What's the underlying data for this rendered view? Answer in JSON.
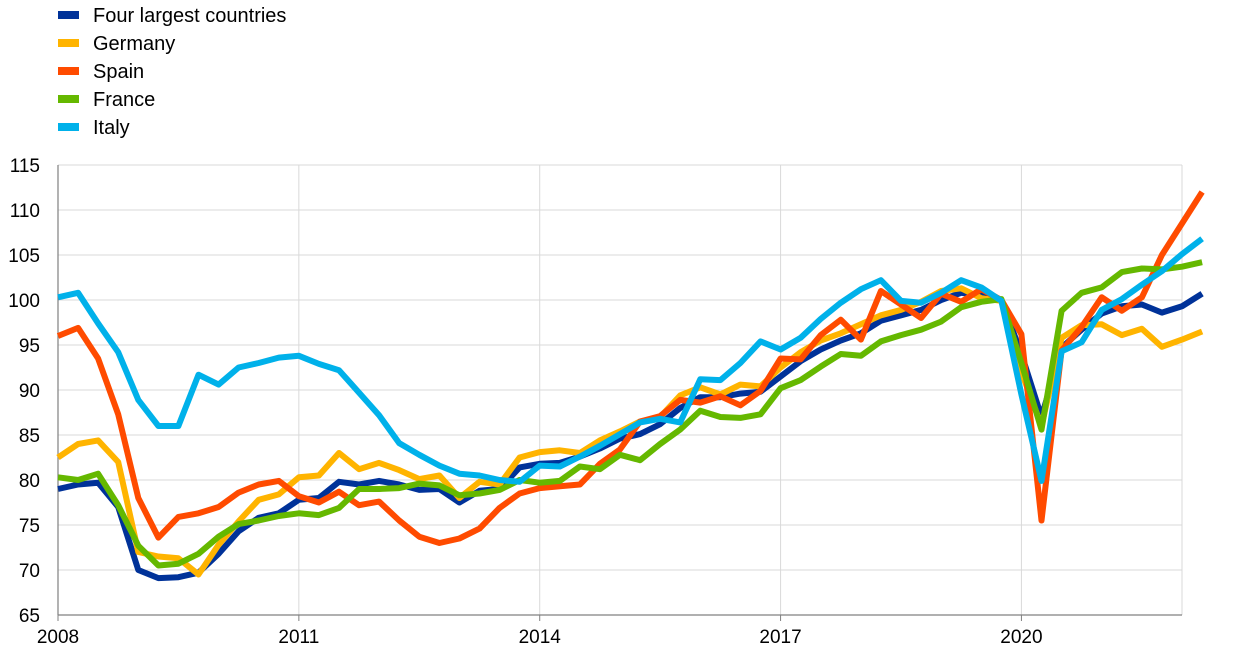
{
  "chart_data": {
    "type": "line",
    "title": "",
    "xlabel": "",
    "ylabel": "",
    "x_start": 2008.0,
    "x_step": 0.25,
    "xlim": [
      2008,
      2022
    ],
    "ylim": [
      65,
      115
    ],
    "x_ticks": [
      2008,
      2011,
      2014,
      2017,
      2020
    ],
    "x_tick_labels": [
      "2008",
      "2011",
      "2014",
      "2017",
      "2020"
    ],
    "y_ticks": [
      65,
      70,
      75,
      80,
      85,
      90,
      95,
      100,
      105,
      110,
      115
    ],
    "y_tick_labels": [
      "65",
      "70",
      "75",
      "80",
      "85",
      "90",
      "95",
      "100",
      "105",
      "110",
      "115"
    ],
    "grid": true,
    "legend_position": "top-left",
    "series": [
      {
        "name": "Four largest  countries",
        "color": "#003299",
        "values": [
          79.0,
          79.5,
          79.7,
          77.0,
          70.0,
          69.1,
          69.2,
          69.7,
          71.8,
          74.3,
          75.8,
          76.3,
          77.8,
          78.0,
          79.8,
          79.5,
          79.9,
          79.5,
          78.9,
          79.0,
          77.5,
          78.8,
          79.0,
          81.4,
          81.8,
          81.9,
          82.6,
          83.5,
          84.6,
          85.1,
          86.2,
          88.0,
          89.2,
          89.2,
          89.6,
          89.8,
          91.5,
          93.2,
          94.5,
          95.5,
          96.3,
          97.7,
          98.3,
          98.9,
          100.0,
          100.8,
          100.5,
          100.0,
          94.0,
          87.0,
          94.7,
          96.7,
          98.5,
          99.3,
          99.5,
          98.6,
          99.3,
          100.7
        ]
      },
      {
        "name": "Germany",
        "color": "#FFB400",
        "values": [
          82.5,
          84.0,
          84.4,
          82.0,
          72.0,
          71.5,
          71.3,
          69.5,
          72.8,
          75.4,
          77.8,
          78.4,
          80.3,
          80.5,
          83.0,
          81.2,
          81.9,
          81.1,
          80.1,
          80.5,
          78.0,
          79.8,
          79.5,
          82.5,
          83.1,
          83.3,
          83.0,
          84.4,
          85.4,
          86.5,
          87.0,
          89.4,
          90.3,
          89.5,
          90.6,
          90.4,
          92.5,
          94.2,
          95.5,
          96.3,
          97.3,
          98.3,
          98.9,
          99.8,
          101.0,
          101.3,
          100.2,
          99.9,
          92.0,
          86.0,
          95.8,
          97.2,
          97.3,
          96.1,
          96.8,
          94.8,
          95.6,
          96.5
        ]
      },
      {
        "name": "Spain",
        "color": "#FF4B00",
        "values": [
          96.0,
          96.9,
          93.5,
          87.3,
          78.0,
          73.6,
          75.9,
          76.3,
          77.0,
          78.6,
          79.5,
          79.9,
          78.2,
          77.5,
          78.7,
          77.2,
          77.6,
          75.5,
          73.7,
          73.0,
          73.5,
          74.6,
          76.9,
          78.5,
          79.1,
          79.3,
          79.5,
          81.8,
          83.4,
          86.5,
          87.1,
          88.9,
          88.6,
          89.3,
          88.3,
          89.9,
          93.5,
          93.4,
          96.1,
          97.8,
          95.6,
          101.0,
          99.5,
          98.0,
          100.7,
          99.8,
          101.2,
          100.0,
          96.2,
          75.5,
          94.4,
          97.0,
          100.3,
          98.8,
          100.3,
          105.0,
          108.5,
          112.0
        ]
      },
      {
        "name": "France",
        "color": "#65B800",
        "values": [
          80.3,
          80.0,
          80.7,
          77.2,
          72.7,
          70.5,
          70.7,
          71.8,
          73.7,
          75.1,
          75.5,
          76.0,
          76.3,
          76.1,
          76.9,
          79.0,
          79.0,
          79.1,
          79.6,
          79.4,
          78.3,
          78.5,
          78.9,
          80.0,
          79.7,
          79.9,
          81.5,
          81.2,
          82.8,
          82.2,
          84.0,
          85.6,
          87.7,
          87.0,
          86.9,
          87.3,
          90.2,
          91.1,
          92.6,
          94.0,
          93.8,
          95.4,
          96.1,
          96.7,
          97.6,
          99.2,
          99.8,
          100.1,
          93.0,
          85.6,
          98.8,
          100.8,
          101.4,
          103.1,
          103.5,
          103.4,
          103.7,
          104.2
        ]
      },
      {
        "name": "Italy",
        "color": "#00B1EA",
        "values": [
          100.3,
          100.8,
          97.4,
          94.2,
          88.9,
          86.0,
          86.0,
          91.7,
          90.6,
          92.5,
          93.0,
          93.6,
          93.8,
          92.9,
          92.2,
          89.7,
          87.2,
          84.1,
          82.8,
          81.6,
          80.7,
          80.5,
          80.0,
          79.8,
          81.6,
          81.5,
          82.6,
          83.8,
          85.1,
          86.4,
          86.8,
          86.4,
          91.2,
          91.1,
          93.0,
          95.4,
          94.5,
          95.8,
          97.9,
          99.7,
          101.2,
          102.2,
          99.9,
          99.7,
          100.8,
          102.2,
          101.4,
          99.9,
          89.5,
          79.9,
          94.3,
          95.3,
          98.9,
          100.1,
          101.7,
          103.2,
          105.1,
          106.8
        ]
      }
    ]
  }
}
